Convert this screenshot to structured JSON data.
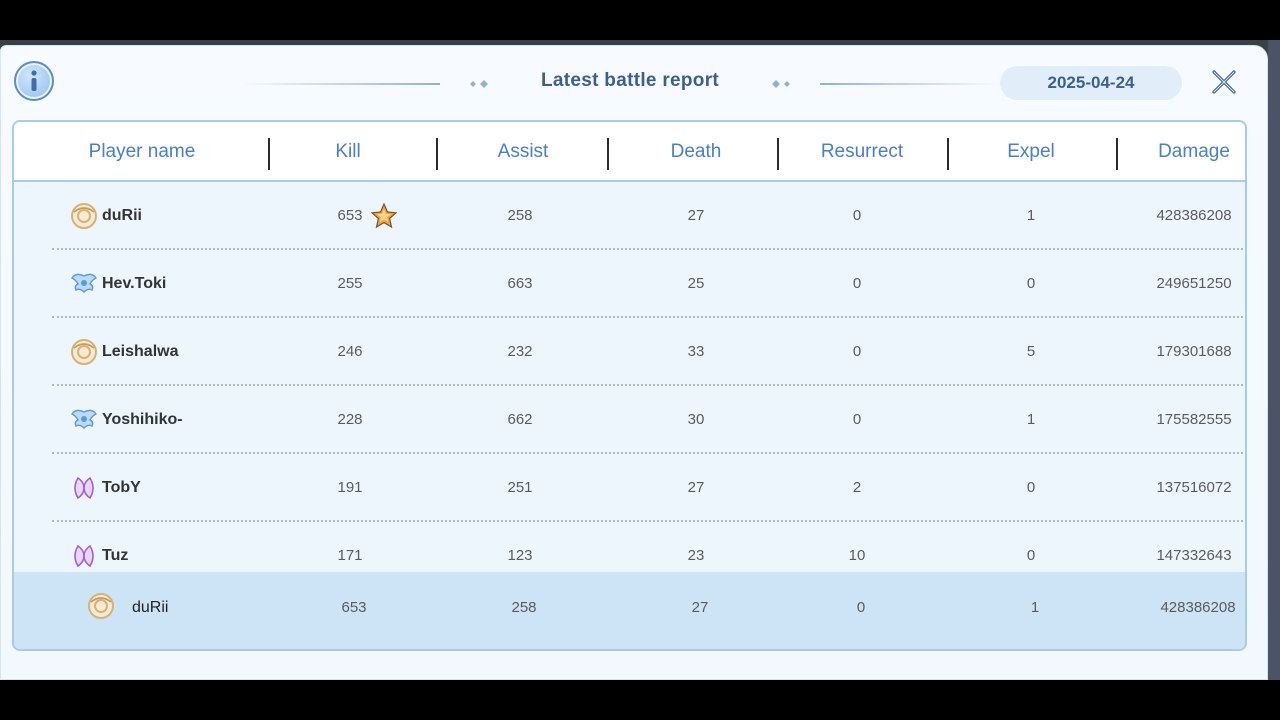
{
  "header": {
    "title": "Latest battle report",
    "date": "2025-04-24"
  },
  "columns": [
    "Player name",
    "Kill",
    "Assist",
    "Death",
    "Resurrect",
    "Expel",
    "Damage"
  ],
  "rows": [
    {
      "name": "duRii",
      "emblem": "gold-emblem-icon",
      "kill": "653",
      "assist": "258",
      "death": "27",
      "resurrect": "0",
      "expel": "1",
      "damage": "428386208",
      "mvp": true
    },
    {
      "name": "Hev.Toki",
      "emblem": "blue-wings-emblem-icon",
      "kill": "255",
      "assist": "663",
      "death": "25",
      "resurrect": "0",
      "expel": "0",
      "damage": "249651250"
    },
    {
      "name": "Leishalwa",
      "emblem": "gold-emblem-icon",
      "kill": "246",
      "assist": "232",
      "death": "33",
      "resurrect": "0",
      "expel": "5",
      "damage": "179301688"
    },
    {
      "name": "Yoshihiko-",
      "emblem": "blue-wings-emblem-icon",
      "kill": "228",
      "assist": "662",
      "death": "30",
      "resurrect": "0",
      "expel": "1",
      "damage": "175582555"
    },
    {
      "name": "TobY",
      "emblem": "purple-emblem-icon",
      "kill": "191",
      "assist": "251",
      "death": "27",
      "resurrect": "2",
      "expel": "0",
      "damage": "137516072"
    },
    {
      "name": "Tuz",
      "emblem": "purple-emblem-icon",
      "kill": "171",
      "assist": "123",
      "death": "23",
      "resurrect": "10",
      "expel": "0",
      "damage": "147332643"
    }
  ],
  "self_row": {
    "name": "duRii",
    "emblem": "gold-emblem-icon",
    "kill": "653",
    "assist": "258",
    "death": "27",
    "resurrect": "0",
    "expel": "1",
    "damage": "428386208"
  },
  "colors": {
    "accent": "#4b7fbd",
    "title": "#3d5f8e",
    "self_row_bg": "#cde3f6",
    "mvp_star": "#f2a33a"
  },
  "icons": {
    "info": "info-icon",
    "close": "close-icon",
    "mvp": "mvp-star-icon"
  }
}
